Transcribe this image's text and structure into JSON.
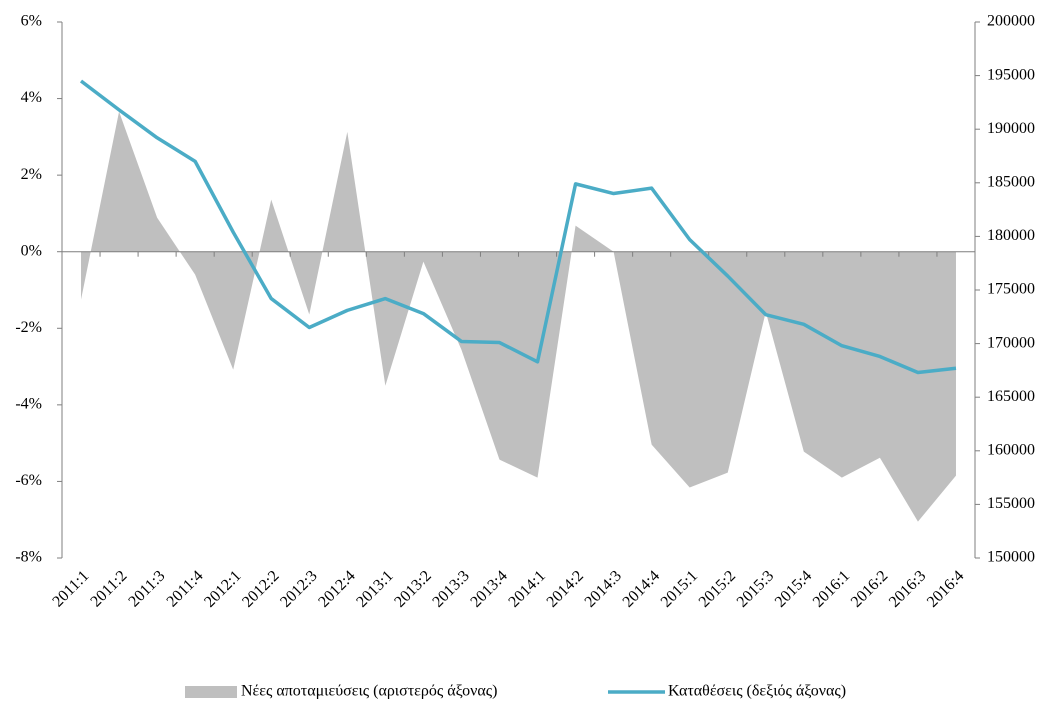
{
  "chart_data": {
    "type": "area_line",
    "categories": [
      "2011:1",
      "2011:2",
      "2011:3",
      "2011:4",
      "2012:1",
      "2012:2",
      "2012:3",
      "2012:4",
      "2013:1",
      "2013:2",
      "2013:3",
      "2013:4",
      "2014:1",
      "2014:2",
      "2014:3",
      "2014:4",
      "2015:1",
      "2015:2",
      "2015:3",
      "2015:4",
      "2016:1",
      "2016:2",
      "2016:3",
      "2016:4"
    ],
    "series": [
      {
        "name": "Νέες αποταμιεύσεις (αριστερός άξονας)",
        "color": "#bfbfbf",
        "kind": "area",
        "values": [
          -1.25,
          3.66,
          0.89,
          -0.6,
          -3.08,
          1.36,
          -1.64,
          3.13,
          -3.5,
          -0.26,
          -2.56,
          -5.43,
          -5.9,
          0.68,
          0,
          -5.04,
          -6.16,
          -5.77,
          -1.57,
          -5.22,
          -5.9,
          -5.38,
          -7.05,
          -5.85
        ]
      },
      {
        "name": "Καταθέσεις (δεξιός άξονας)",
        "color": "#4bacc6",
        "kind": "line",
        "axis": "y2",
        "values": [
          194500,
          191800,
          189200,
          187000,
          180400,
          174200,
          171500,
          173100,
          174200,
          172800,
          170200,
          170100,
          168300,
          184900,
          184000,
          184500,
          179700,
          176300,
          172700,
          171800,
          169800,
          168800,
          167300,
          167700
        ]
      }
    ],
    "ylim": [
      -8,
      6
    ],
    "yticks": [
      {
        "value": 6,
        "label": "6%"
      },
      {
        "value": 4,
        "label": "4%"
      },
      {
        "value": 2,
        "label": "2%"
      },
      {
        "value": 0,
        "label": "0%"
      },
      {
        "value": -2,
        "label": "-2%"
      },
      {
        "value": -4,
        "label": "-4%"
      },
      {
        "value": -6,
        "label": "-6%"
      },
      {
        "value": -8,
        "label": "-8%"
      }
    ],
    "y2lim": [
      150000,
      200000
    ],
    "y2ticks": [
      200000,
      195000,
      190000,
      185000,
      180000,
      175000,
      170000,
      165000,
      160000,
      155000,
      150000
    ],
    "legend": "bottom"
  }
}
